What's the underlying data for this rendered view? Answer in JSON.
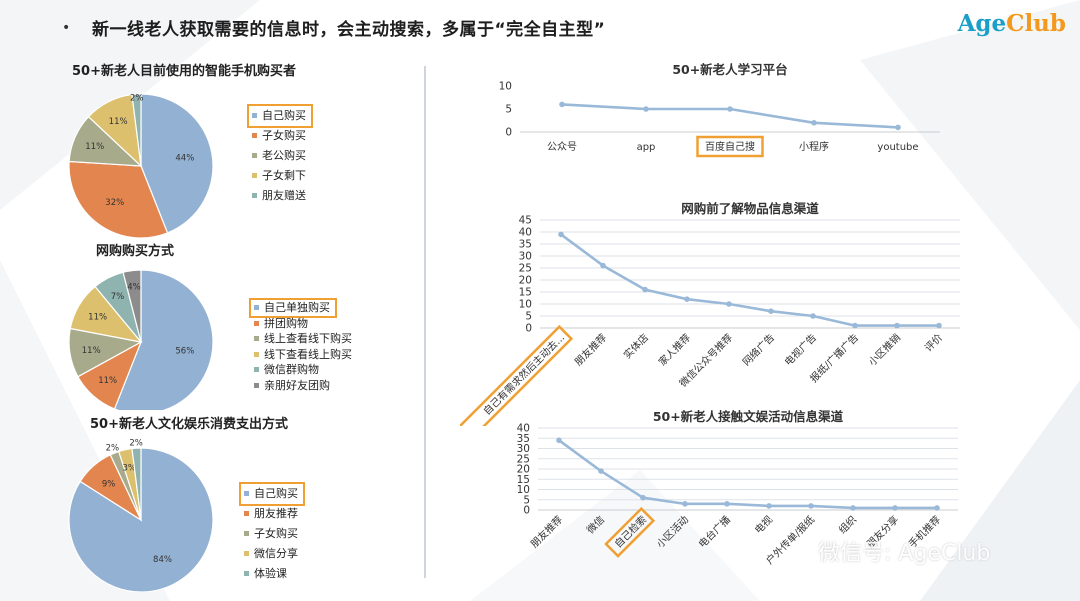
{
  "header": {
    "bullet": "•",
    "headline": "新一线老人获取需要的信息时，会主动搜索，多属于“完全自主型”"
  },
  "logo": {
    "part1": "Age",
    "part2": "Club"
  },
  "watermark": "微信号: AgeClub",
  "colors": {
    "blue": "#92b1d3",
    "orange": "#e2854f",
    "gray": "#a8ab8b",
    "yellow": "#dcc06e",
    "teal": "#8fb3ae",
    "dark": "#8c8c8c",
    "line": "#9ab9d8",
    "highlight": "#f0a033"
  },
  "chart_data": [
    {
      "id": "pie1",
      "type": "pie",
      "title": "50+新老人目前使用的智能手机购买者",
      "slices": [
        {
          "label": "自己购买",
          "value": 44,
          "data_label": "44%",
          "color": "#92b1d3"
        },
        {
          "label": "子女购买",
          "value": 32,
          "data_label": "32%",
          "color": "#e2854f"
        },
        {
          "label": "老公购买",
          "value": 11,
          "data_label": "11%",
          "color": "#a8ab8b"
        },
        {
          "label": "子女剩下",
          "value": 11,
          "data_label": "11%",
          "color": "#dcc06e"
        },
        {
          "label": "朋友赠送",
          "value": 2,
          "data_label": "2%",
          "color": "#8fb3ae"
        }
      ],
      "highlight": "自己购买",
      "legend_position": "right"
    },
    {
      "id": "pie2",
      "type": "pie",
      "title": "网购购买方式",
      "slices": [
        {
          "label": "自己单独购买",
          "value": 56,
          "data_label": "56%",
          "color": "#92b1d3"
        },
        {
          "label": "拼团购物",
          "value": 11,
          "data_label": "11%",
          "color": "#e2854f"
        },
        {
          "label": "线上查看线下购买",
          "value": 11,
          "data_label": "11%",
          "color": "#a8ab8b"
        },
        {
          "label": "线下查看线上购买",
          "value": 11,
          "data_label": "11%",
          "color": "#dcc06e"
        },
        {
          "label": "微信群购物",
          "value": 7,
          "data_label": "7%",
          "color": "#8fb3ae"
        },
        {
          "label": "亲朋好友团购",
          "value": 4,
          "data_label": "4%",
          "color": "#8c8c8c"
        }
      ],
      "highlight": "自己单独购买",
      "legend_position": "right"
    },
    {
      "id": "pie3",
      "type": "pie",
      "title": "50+新老人文化娱乐消费支出方式",
      "slices": [
        {
          "label": "自己购买",
          "value": 84,
          "data_label": "84%",
          "color": "#92b1d3"
        },
        {
          "label": "朋友推荐",
          "value": 9,
          "data_label": "9%",
          "color": "#e2854f"
        },
        {
          "label": "子女购买",
          "value": 2,
          "data_label": "2%",
          "color": "#a8ab8b"
        },
        {
          "label": "微信分享",
          "value": 3,
          "data_label": "3%",
          "color": "#dcc06e"
        },
        {
          "label": "体验课",
          "value": 2,
          "data_label": "2%",
          "color": "#8fb3ae"
        }
      ],
      "highlight": "自己购买",
      "legend_position": "right"
    },
    {
      "id": "line1",
      "type": "line",
      "title": "50+新老人学习平台",
      "categories": [
        "公众号",
        "app",
        "百度自己搜",
        "小程序",
        "youtube"
      ],
      "values": [
        6,
        5,
        5,
        2,
        1
      ],
      "ylim": [
        0,
        10
      ],
      "yticks": [
        "0",
        "5",
        "10"
      ],
      "grid": false,
      "highlight": "百度自己搜"
    },
    {
      "id": "line2",
      "type": "line",
      "title": "网购前了解物品信息渠道",
      "categories": [
        "自己有需求然后主动去...",
        "朋友推荐",
        "实体店",
        "家人推荐",
        "微信公众号推荐",
        "网络广告",
        "电视广告",
        "报纸/广播广告",
        "小区推销",
        "评价"
      ],
      "values": [
        39,
        26,
        16,
        12,
        10,
        7,
        5,
        1,
        1,
        1
      ],
      "ylim": [
        0,
        45
      ],
      "yticks": [
        "0",
        "5",
        "10",
        "15",
        "20",
        "25",
        "30",
        "35",
        "40",
        "45"
      ],
      "grid": true,
      "highlight": "自己有需求然后主动去..."
    },
    {
      "id": "line3",
      "type": "line",
      "title": "50+新老人接触文娱活动信息渠道",
      "categories": [
        "朋友推荐",
        "微信",
        "自己检索",
        "小区活动",
        "电台广播",
        "电视",
        "户外传单/报纸",
        "组织",
        "朋友分享",
        "手机推荐"
      ],
      "values": [
        34,
        19,
        6,
        3,
        3,
        2,
        2,
        1,
        1,
        1
      ],
      "ylim": [
        0,
        40
      ],
      "yticks": [
        "0",
        "5",
        "10",
        "15",
        "20",
        "25",
        "30",
        "35",
        "40"
      ],
      "grid": true,
      "highlight": "自己检索"
    }
  ]
}
